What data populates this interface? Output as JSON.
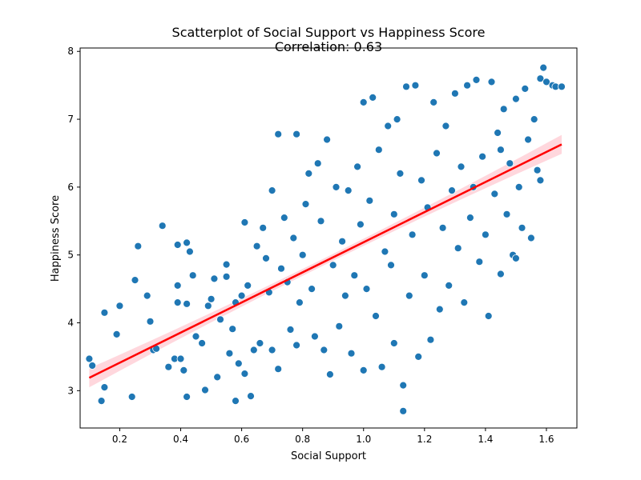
{
  "chart_data": {
    "type": "scatter",
    "title": "Scatterplot of Social Support vs Happiness Score",
    "subtitle": "Correlation: 0.63",
    "xlabel": "Social Support",
    "ylabel": "Happiness Score",
    "xlim": [
      0.07,
      1.7
    ],
    "ylim": [
      2.45,
      8.05
    ],
    "xticks": [
      0.2,
      0.4,
      0.6,
      0.8,
      1.0,
      1.2,
      1.4,
      1.6
    ],
    "xtick_labels": [
      "0.2",
      "0.4",
      "0.6",
      "0.8",
      "1.0",
      "1.2",
      "1.4",
      "1.6"
    ],
    "yticks": [
      3,
      4,
      5,
      6,
      7,
      8
    ],
    "ytick_labels": [
      "3",
      "4",
      "5",
      "6",
      "7",
      "8"
    ],
    "grid": false,
    "point_color": "#1f77b4",
    "point_edge_color": "#ffffff",
    "regression_line": {
      "color": "#ff0000",
      "band_color": "#ffb6c1",
      "x": [
        0.1,
        1.65
      ],
      "y": [
        3.19,
        6.63
      ],
      "band_half_width_ends": 0.14,
      "band_half_width_center": 0.05
    },
    "points": [
      {
        "x": 0.1,
        "y": 3.47
      },
      {
        "x": 0.11,
        "y": 3.37
      },
      {
        "x": 0.14,
        "y": 2.85
      },
      {
        "x": 0.15,
        "y": 4.15
      },
      {
        "x": 0.15,
        "y": 3.05
      },
      {
        "x": 0.19,
        "y": 3.83
      },
      {
        "x": 0.2,
        "y": 4.25
      },
      {
        "x": 0.24,
        "y": 2.91
      },
      {
        "x": 0.25,
        "y": 4.63
      },
      {
        "x": 0.26,
        "y": 5.13
      },
      {
        "x": 0.29,
        "y": 4.4
      },
      {
        "x": 0.3,
        "y": 4.02
      },
      {
        "x": 0.31,
        "y": 3.6
      },
      {
        "x": 0.32,
        "y": 3.62
      },
      {
        "x": 0.34,
        "y": 5.43
      },
      {
        "x": 0.36,
        "y": 3.35
      },
      {
        "x": 0.38,
        "y": 3.47
      },
      {
        "x": 0.39,
        "y": 4.55
      },
      {
        "x": 0.39,
        "y": 4.3
      },
      {
        "x": 0.39,
        "y": 5.15
      },
      {
        "x": 0.4,
        "y": 3.47
      },
      {
        "x": 0.41,
        "y": 3.3
      },
      {
        "x": 0.42,
        "y": 4.28
      },
      {
        "x": 0.42,
        "y": 2.91
      },
      {
        "x": 0.42,
        "y": 5.18
      },
      {
        "x": 0.43,
        "y": 5.05
      },
      {
        "x": 0.44,
        "y": 4.7
      },
      {
        "x": 0.45,
        "y": 3.8
      },
      {
        "x": 0.47,
        "y": 3.7
      },
      {
        "x": 0.48,
        "y": 3.01
      },
      {
        "x": 0.49,
        "y": 4.25
      },
      {
        "x": 0.5,
        "y": 4.35
      },
      {
        "x": 0.51,
        "y": 4.65
      },
      {
        "x": 0.52,
        "y": 3.2
      },
      {
        "x": 0.53,
        "y": 4.05
      },
      {
        "x": 0.55,
        "y": 4.86
      },
      {
        "x": 0.55,
        "y": 4.68
      },
      {
        "x": 0.56,
        "y": 3.55
      },
      {
        "x": 0.57,
        "y": 3.91
      },
      {
        "x": 0.58,
        "y": 4.3
      },
      {
        "x": 0.58,
        "y": 2.85
      },
      {
        "x": 0.59,
        "y": 3.4
      },
      {
        "x": 0.6,
        "y": 4.4
      },
      {
        "x": 0.61,
        "y": 5.48
      },
      {
        "x": 0.61,
        "y": 3.25
      },
      {
        "x": 0.62,
        "y": 4.55
      },
      {
        "x": 0.63,
        "y": 2.92
      },
      {
        "x": 0.64,
        "y": 3.6
      },
      {
        "x": 0.65,
        "y": 5.13
      },
      {
        "x": 0.66,
        "y": 3.7
      },
      {
        "x": 0.67,
        "y": 5.4
      },
      {
        "x": 0.68,
        "y": 4.95
      },
      {
        "x": 0.69,
        "y": 4.45
      },
      {
        "x": 0.7,
        "y": 5.95
      },
      {
        "x": 0.7,
        "y": 3.6
      },
      {
        "x": 0.72,
        "y": 6.78
      },
      {
        "x": 0.72,
        "y": 3.32
      },
      {
        "x": 0.73,
        "y": 4.8
      },
      {
        "x": 0.74,
        "y": 5.55
      },
      {
        "x": 0.75,
        "y": 4.6
      },
      {
        "x": 0.76,
        "y": 3.9
      },
      {
        "x": 0.77,
        "y": 5.25
      },
      {
        "x": 0.78,
        "y": 6.78
      },
      {
        "x": 0.78,
        "y": 3.67
      },
      {
        "x": 0.79,
        "y": 4.3
      },
      {
        "x": 0.8,
        "y": 5.0
      },
      {
        "x": 0.81,
        "y": 5.75
      },
      {
        "x": 0.82,
        "y": 6.2
      },
      {
        "x": 0.83,
        "y": 4.5
      },
      {
        "x": 0.84,
        "y": 3.8
      },
      {
        "x": 0.85,
        "y": 6.35
      },
      {
        "x": 0.86,
        "y": 5.5
      },
      {
        "x": 0.87,
        "y": 3.6
      },
      {
        "x": 0.88,
        "y": 6.7
      },
      {
        "x": 0.89,
        "y": 3.24
      },
      {
        "x": 0.9,
        "y": 4.85
      },
      {
        "x": 0.91,
        "y": 6.0
      },
      {
        "x": 0.92,
        "y": 3.95
      },
      {
        "x": 0.93,
        "y": 5.2
      },
      {
        "x": 0.94,
        "y": 4.4
      },
      {
        "x": 0.95,
        "y": 5.95
      },
      {
        "x": 0.96,
        "y": 3.55
      },
      {
        "x": 0.97,
        "y": 4.7
      },
      {
        "x": 0.98,
        "y": 6.3
      },
      {
        "x": 0.99,
        "y": 5.45
      },
      {
        "x": 1.0,
        "y": 7.25
      },
      {
        "x": 1.0,
        "y": 3.3
      },
      {
        "x": 1.01,
        "y": 4.5
      },
      {
        "x": 1.02,
        "y": 5.8
      },
      {
        "x": 1.03,
        "y": 7.32
      },
      {
        "x": 1.04,
        "y": 4.1
      },
      {
        "x": 1.05,
        "y": 6.55
      },
      {
        "x": 1.06,
        "y": 3.35
      },
      {
        "x": 1.07,
        "y": 5.05
      },
      {
        "x": 1.08,
        "y": 6.9
      },
      {
        "x": 1.09,
        "y": 4.85
      },
      {
        "x": 1.1,
        "y": 5.6
      },
      {
        "x": 1.1,
        "y": 3.7
      },
      {
        "x": 1.11,
        "y": 7.0
      },
      {
        "x": 1.12,
        "y": 6.2
      },
      {
        "x": 1.13,
        "y": 3.08
      },
      {
        "x": 1.13,
        "y": 2.7
      },
      {
        "x": 1.14,
        "y": 7.48
      },
      {
        "x": 1.15,
        "y": 4.4
      },
      {
        "x": 1.16,
        "y": 5.3
      },
      {
        "x": 1.17,
        "y": 7.5
      },
      {
        "x": 1.18,
        "y": 3.5
      },
      {
        "x": 1.19,
        "y": 6.1
      },
      {
        "x": 1.2,
        "y": 4.7
      },
      {
        "x": 1.21,
        "y": 5.7
      },
      {
        "x": 1.22,
        "y": 3.75
      },
      {
        "x": 1.23,
        "y": 7.25
      },
      {
        "x": 1.24,
        "y": 6.5
      },
      {
        "x": 1.25,
        "y": 4.2
      },
      {
        "x": 1.26,
        "y": 5.4
      },
      {
        "x": 1.27,
        "y": 6.9
      },
      {
        "x": 1.28,
        "y": 4.55
      },
      {
        "x": 1.29,
        "y": 5.95
      },
      {
        "x": 1.3,
        "y": 7.38
      },
      {
        "x": 1.31,
        "y": 5.1
      },
      {
        "x": 1.32,
        "y": 6.3
      },
      {
        "x": 1.33,
        "y": 4.3
      },
      {
        "x": 1.34,
        "y": 7.5
      },
      {
        "x": 1.35,
        "y": 5.55
      },
      {
        "x": 1.36,
        "y": 6.0
      },
      {
        "x": 1.37,
        "y": 7.58
      },
      {
        "x": 1.38,
        "y": 4.9
      },
      {
        "x": 1.39,
        "y": 6.45
      },
      {
        "x": 1.4,
        "y": 5.3
      },
      {
        "x": 1.41,
        "y": 4.1
      },
      {
        "x": 1.42,
        "y": 7.55
      },
      {
        "x": 1.43,
        "y": 5.9
      },
      {
        "x": 1.44,
        "y": 6.8
      },
      {
        "x": 1.45,
        "y": 4.72
      },
      {
        "x": 1.46,
        "y": 7.15
      },
      {
        "x": 1.47,
        "y": 5.6
      },
      {
        "x": 1.48,
        "y": 6.35
      },
      {
        "x": 1.49,
        "y": 5.0
      },
      {
        "x": 1.5,
        "y": 7.3
      },
      {
        "x": 1.51,
        "y": 6.0
      },
      {
        "x": 1.52,
        "y": 5.4
      },
      {
        "x": 1.53,
        "y": 7.45
      },
      {
        "x": 1.54,
        "y": 6.7
      },
      {
        "x": 1.55,
        "y": 5.25
      },
      {
        "x": 1.56,
        "y": 7.0
      },
      {
        "x": 1.57,
        "y": 6.25
      },
      {
        "x": 1.58,
        "y": 7.6
      },
      {
        "x": 1.59,
        "y": 7.76
      },
      {
        "x": 1.6,
        "y": 7.55
      },
      {
        "x": 1.62,
        "y": 7.5
      },
      {
        "x": 1.63,
        "y": 7.48
      },
      {
        "x": 1.65,
        "y": 7.48
      },
      {
        "x": 1.58,
        "y": 6.1
      },
      {
        "x": 1.5,
        "y": 4.95
      },
      {
        "x": 1.45,
        "y": 6.55
      }
    ]
  }
}
